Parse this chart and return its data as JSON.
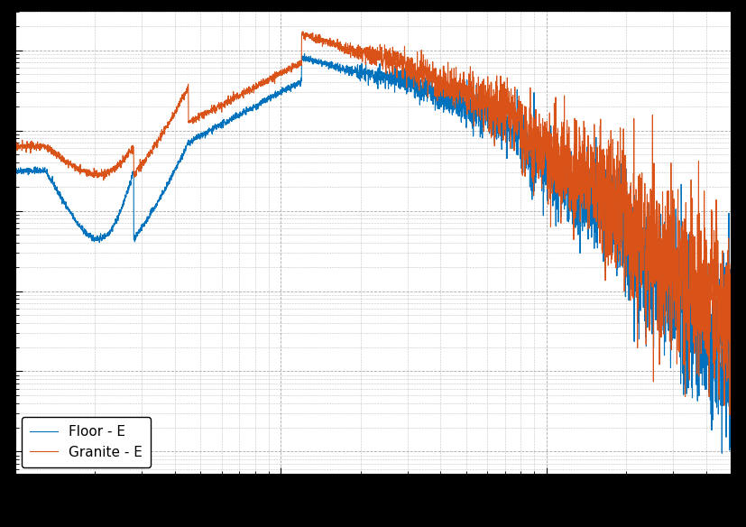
{
  "line1_label": "Floor - E",
  "line2_label": "Granite - E",
  "line1_color": "#0072BD",
  "line2_color": "#D95319",
  "background_color": "#ffffff",
  "outer_background": "#000000",
  "grid_color": "#aaaaaa",
  "figsize": [
    8.28,
    5.84
  ],
  "dpi": 100,
  "linewidth": 0.8,
  "xlim": [
    1,
    500
  ],
  "legend_loc": "lower left",
  "legend_fontsize": 11
}
